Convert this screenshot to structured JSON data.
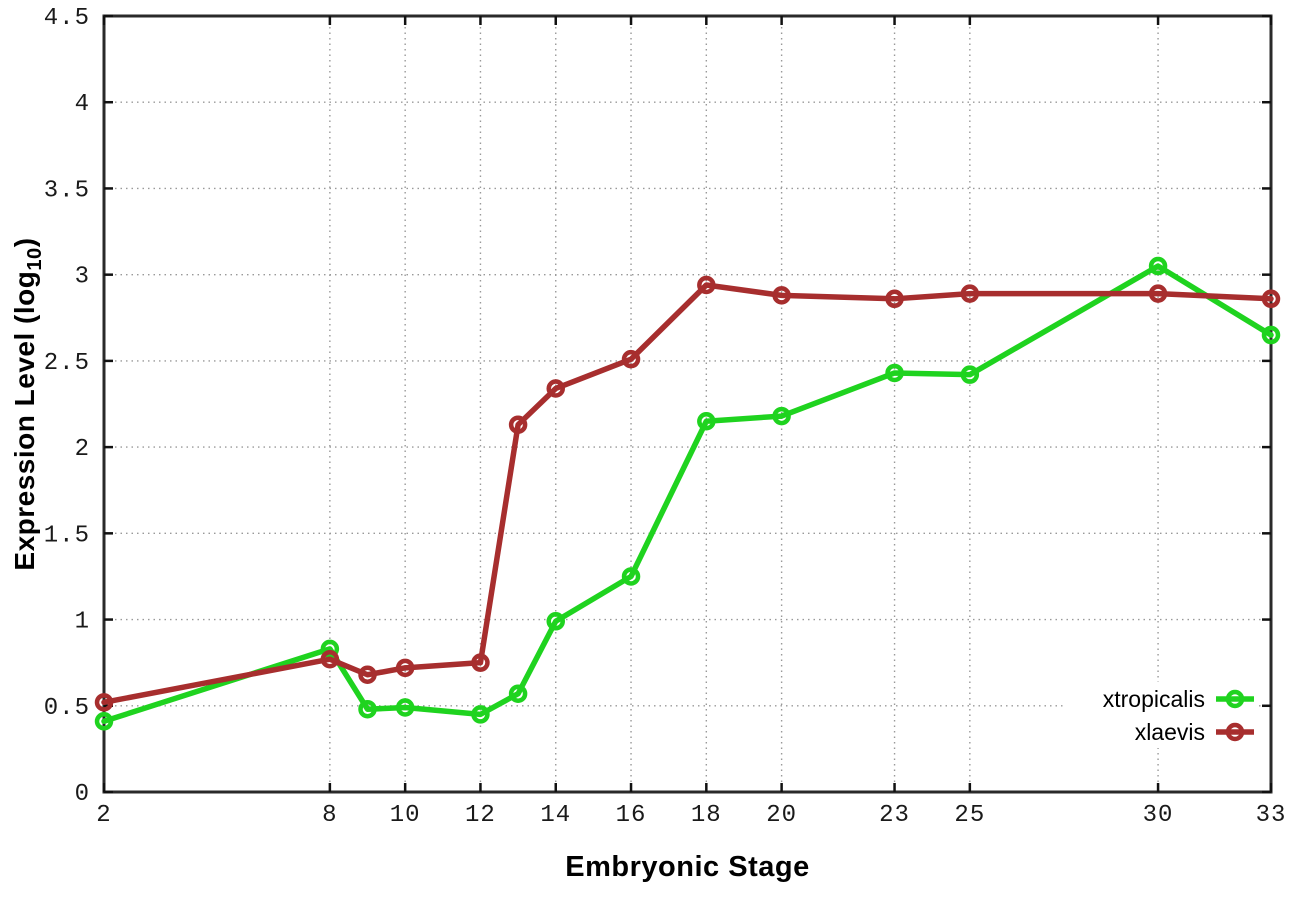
{
  "page": {
    "background": "#ffffff"
  },
  "chart_data": {
    "type": "line",
    "title": "",
    "xlabel": "Embryonic Stage",
    "ylabel": "Expression Level (log10)",
    "ylabel_parts": {
      "main": "Expression Level (log",
      "sub": "10",
      "suffix": ")"
    },
    "x": [
      2,
      8,
      9,
      10,
      12,
      13,
      14,
      16,
      18,
      20,
      23,
      25,
      30,
      33
    ],
    "series": [
      {
        "name": "xtropicalis",
        "color": "#1fd31f",
        "values": [
          0.41,
          0.83,
          0.48,
          0.49,
          0.45,
          0.57,
          0.99,
          1.25,
          2.15,
          2.18,
          2.43,
          2.42,
          3.05,
          2.65
        ]
      },
      {
        "name": "xlaevis",
        "color": "#a72e2e",
        "values": [
          0.52,
          0.77,
          0.68,
          0.72,
          0.75,
          2.13,
          2.34,
          2.51,
          2.94,
          2.88,
          2.86,
          2.89,
          2.89,
          2.86
        ]
      }
    ],
    "xlim": [
      2,
      33
    ],
    "ylim": [
      0,
      4.5
    ],
    "xticks": [
      2,
      8,
      10,
      12,
      14,
      16,
      18,
      20,
      23,
      25,
      30,
      33
    ],
    "xtick_labels": [
      "2",
      "8",
      "10",
      "12",
      "14",
      "16",
      "18",
      "20",
      "23",
      "25",
      "30",
      "33"
    ],
    "yticks": [
      0,
      0.5,
      1,
      1.5,
      2,
      2.5,
      3,
      3.5,
      4,
      4.5
    ],
    "ytick_labels": [
      "0",
      "0.5",
      "1",
      "1.5",
      "2",
      "2.5",
      "3",
      "3.5",
      "4",
      "4.5"
    ],
    "grid": true,
    "legend_position": "bottom-right",
    "marker": "open-circle",
    "colors": {
      "grid": "#999999",
      "axis": "#2a2a2a",
      "tick_text": "#1a1a1a",
      "background": "#ffffff"
    }
  }
}
